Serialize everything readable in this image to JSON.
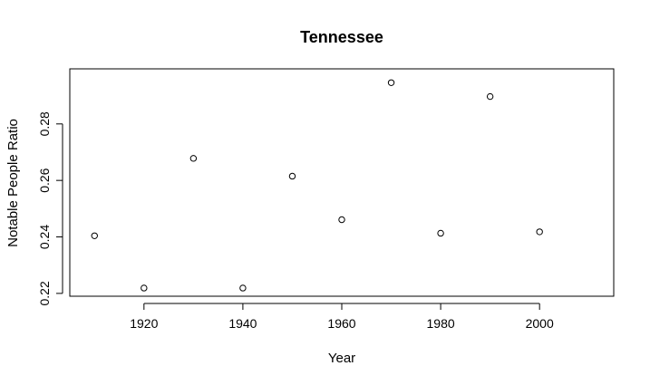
{
  "chart_data": {
    "type": "scatter",
    "title": "Tennessee",
    "xlabel": "Year",
    "ylabel": "Notable People Ratio",
    "xlim": [
      1905,
      2015
    ],
    "ylim": [
      0.219,
      0.2995
    ],
    "xticks": [
      1920,
      1940,
      1960,
      1980,
      2000
    ],
    "yticks": [
      0.22,
      0.24,
      0.26,
      0.28
    ],
    "xtick_labels": [
      "1920",
      "1940",
      "1960",
      "1980",
      "2000"
    ],
    "ytick_labels": [
      "0.22",
      "0.24",
      "0.26",
      "0.28"
    ],
    "grid": false,
    "x": [
      1910,
      1920,
      1930,
      1940,
      1950,
      1960,
      1970,
      1980,
      1990,
      2000
    ],
    "y": [
      0.2404,
      0.2219,
      0.2678,
      0.2219,
      0.2615,
      0.2461,
      0.2946,
      0.2413,
      0.2897,
      0.2418
    ]
  }
}
